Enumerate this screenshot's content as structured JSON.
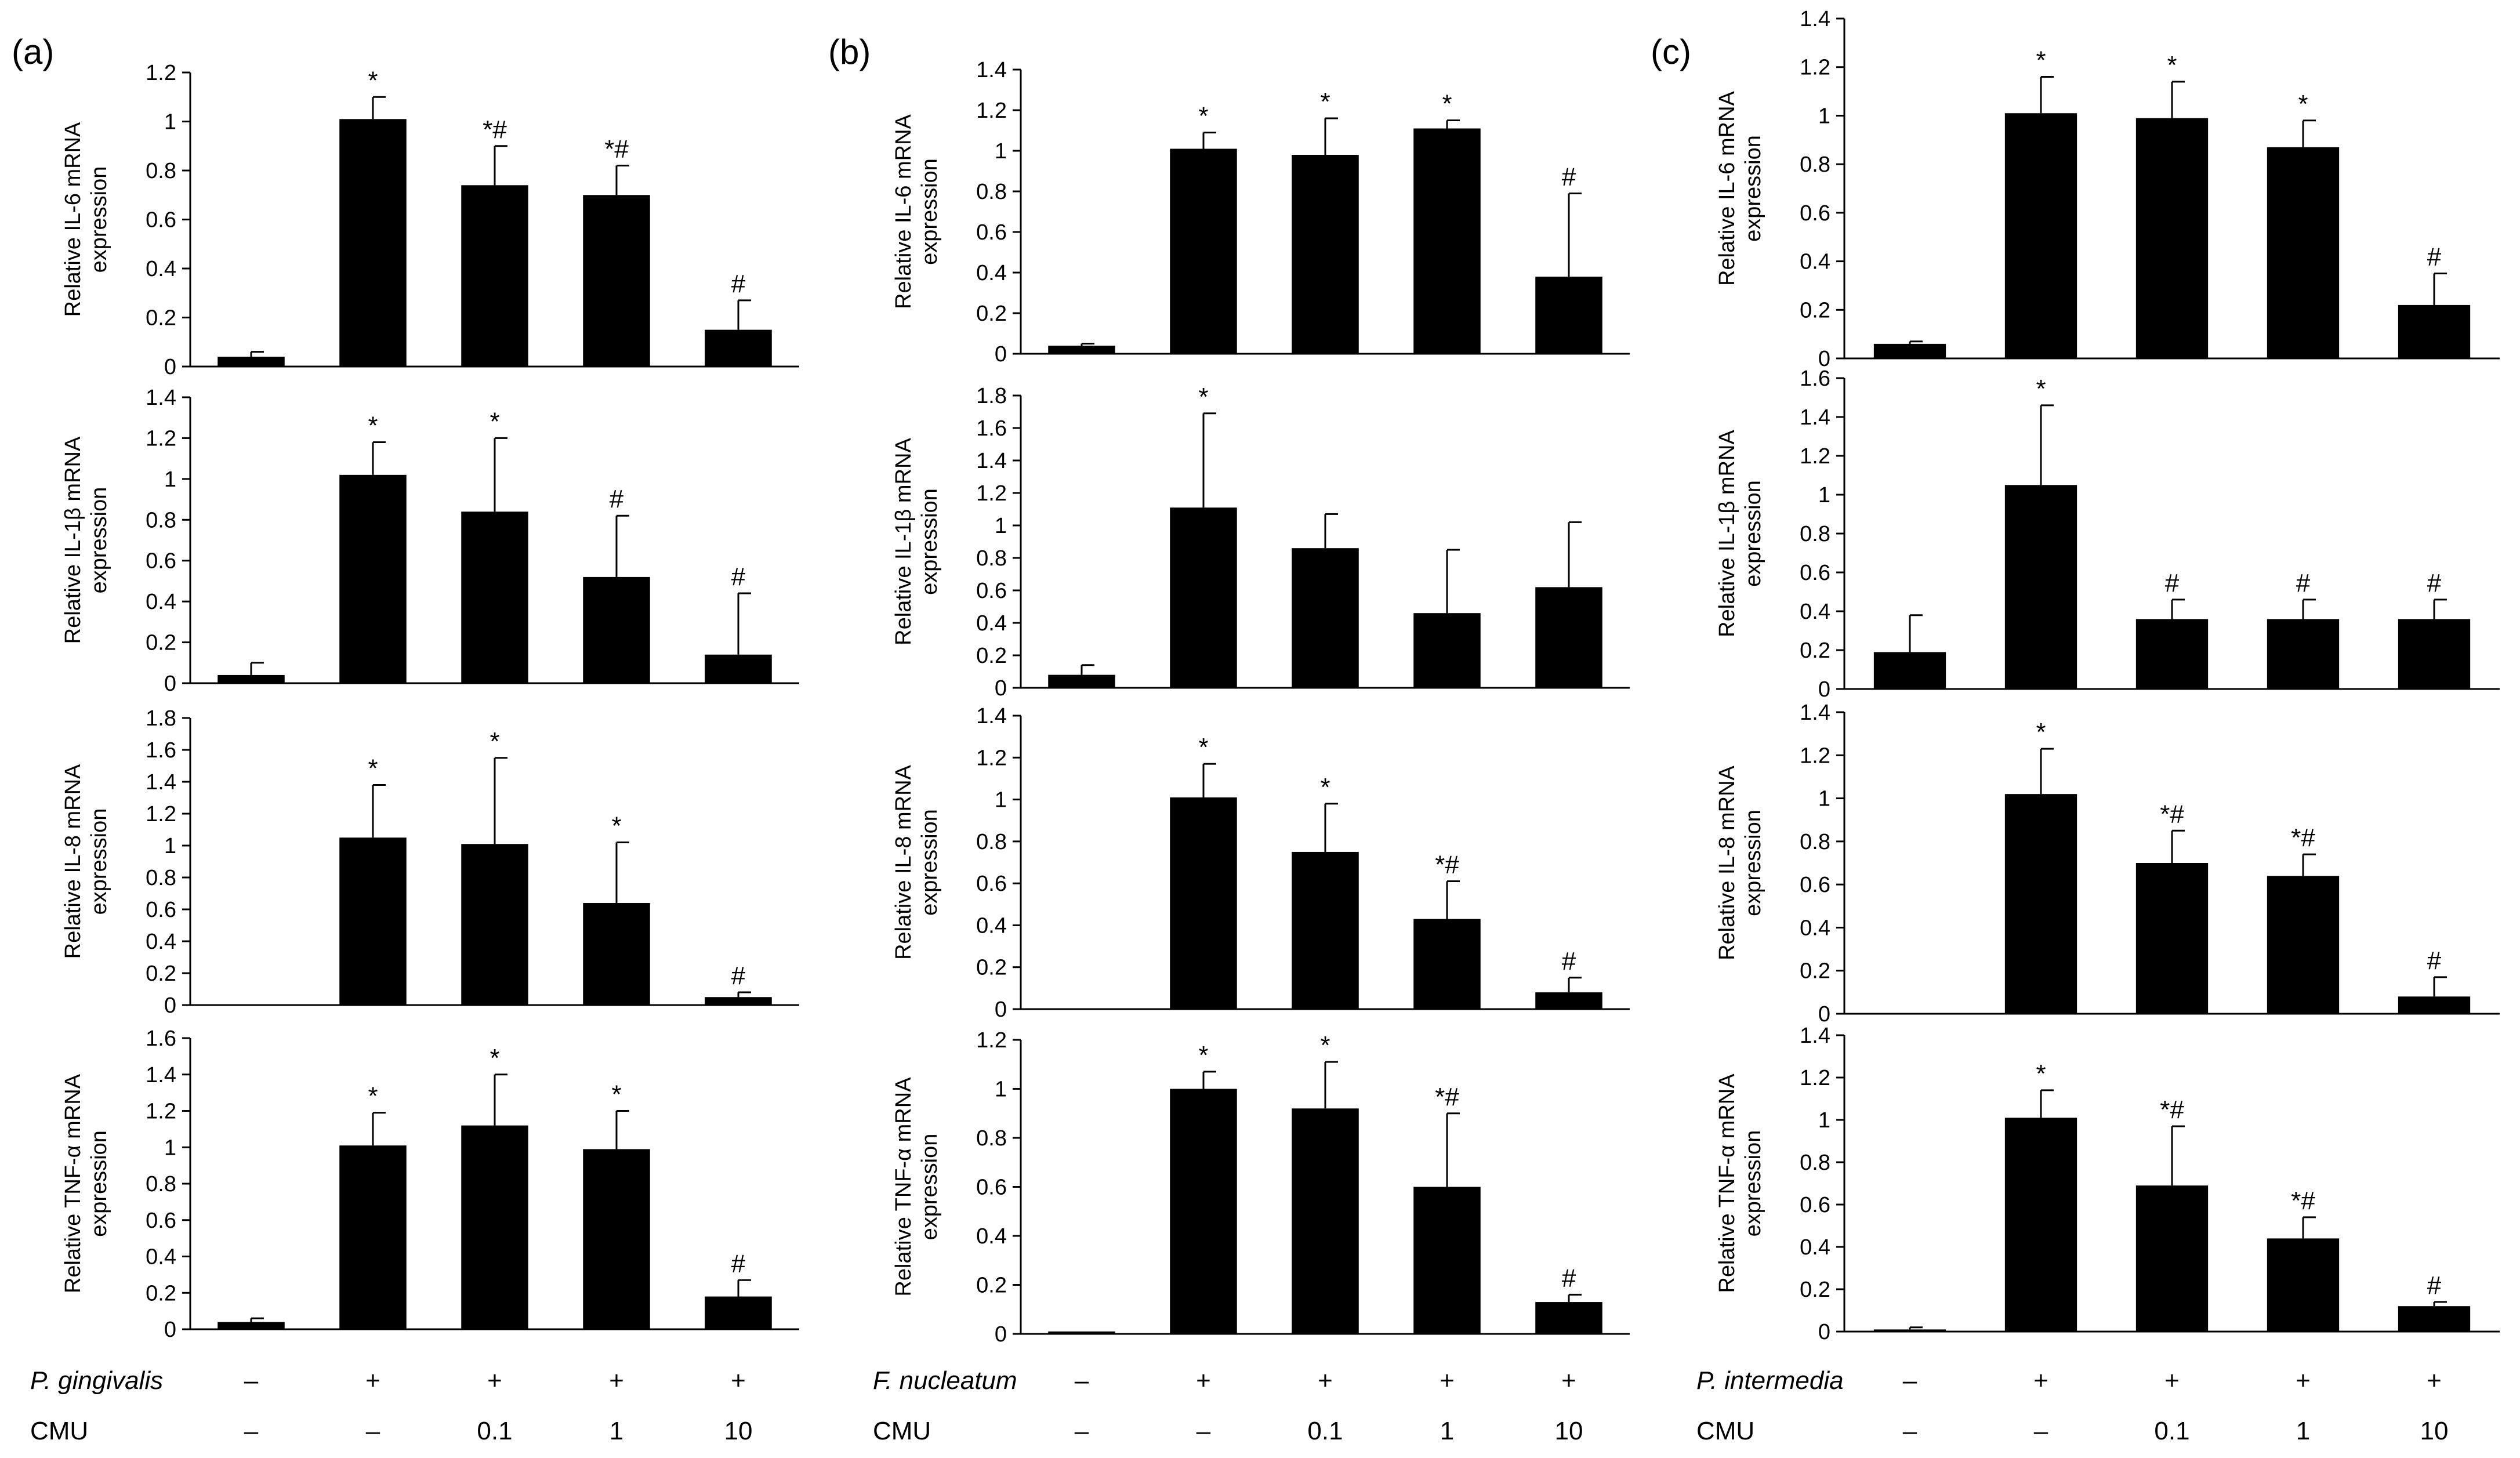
{
  "figure": {
    "panel_labels": [
      "(a)",
      "(b)",
      "(c)"
    ],
    "bacteria": [
      "P. gingivalis",
      "F. nucleatum",
      "P. intermedia"
    ],
    "cmu_label": "CMU",
    "plus": "+",
    "minus": "–",
    "bacteria_row": [
      "–",
      "+",
      "+",
      "+",
      "+"
    ],
    "cmu_row": [
      "–",
      "–",
      "0.1",
      "1",
      "10"
    ],
    "ylabel_line2": "expression"
  },
  "chart_data": [
    {
      "id": "a-il6",
      "type": "bar",
      "panel": "(a)",
      "ylabel": "Relative IL-6 mRNA",
      "ylim": [
        0,
        1.2
      ],
      "yticks": [
        0,
        0.2,
        0.4,
        0.6,
        0.8,
        1,
        1.2
      ],
      "values": [
        0.04,
        1.01,
        0.74,
        0.7,
        0.15
      ],
      "errors": [
        0.02,
        0.09,
        0.16,
        0.12,
        0.12
      ],
      "marks": [
        "",
        "*",
        "*#",
        "*#",
        "#"
      ]
    },
    {
      "id": "a-il1b",
      "type": "bar",
      "panel": "(a)",
      "ylabel": "Relative IL-1β mRNA",
      "ylim": [
        0,
        1.4
      ],
      "yticks": [
        0,
        0.2,
        0.4,
        0.6,
        0.8,
        1,
        1.2,
        1.4
      ],
      "values": [
        0.04,
        1.02,
        0.84,
        0.52,
        0.14
      ],
      "errors": [
        0.06,
        0.16,
        0.36,
        0.3,
        0.3
      ],
      "marks": [
        "",
        "*",
        "*",
        "#",
        "#"
      ]
    },
    {
      "id": "a-il8",
      "type": "bar",
      "panel": "(a)",
      "ylabel": "Relative IL-8 mRNA",
      "ylim": [
        0,
        1.8
      ],
      "yticks": [
        0,
        0.2,
        0.4,
        0.6,
        0.8,
        1,
        1.2,
        1.4,
        1.6,
        1.8
      ],
      "values": [
        0,
        1.05,
        1.01,
        0.64,
        0.05
      ],
      "errors": [
        0,
        0.33,
        0.54,
        0.38,
        0.03
      ],
      "marks": [
        "",
        "*",
        "*",
        "*",
        "#"
      ]
    },
    {
      "id": "a-tnf",
      "type": "bar",
      "panel": "(a)",
      "ylabel": "Relative TNF-α mRNA",
      "ylim": [
        0,
        1.6
      ],
      "yticks": [
        0,
        0.2,
        0.4,
        0.6,
        0.8,
        1,
        1.2,
        1.4,
        1.6
      ],
      "values": [
        0.04,
        1.01,
        1.12,
        0.99,
        0.18
      ],
      "errors": [
        0.02,
        0.18,
        0.28,
        0.21,
        0.09
      ],
      "marks": [
        "",
        "*",
        "*",
        "*",
        "#"
      ]
    },
    {
      "id": "b-il6",
      "type": "bar",
      "panel": "(b)",
      "ylabel": "Relative IL-6 mRNA",
      "ylim": [
        0,
        1.4
      ],
      "yticks": [
        0,
        0.2,
        0.4,
        0.6,
        0.8,
        1,
        1.2,
        1.4
      ],
      "values": [
        0.04,
        1.01,
        0.98,
        1.11,
        0.38
      ],
      "errors": [
        0.01,
        0.08,
        0.18,
        0.04,
        0.41
      ],
      "marks": [
        "",
        "*",
        "*",
        "*",
        "#"
      ]
    },
    {
      "id": "b-il1b",
      "type": "bar",
      "panel": "(b)",
      "ylabel": "Relative IL-1β mRNA",
      "ylim": [
        0,
        1.8
      ],
      "yticks": [
        0,
        0.2,
        0.4,
        0.6,
        0.8,
        1,
        1.2,
        1.4,
        1.6,
        1.8
      ],
      "values": [
        0.08,
        1.11,
        0.86,
        0.46,
        0.62
      ],
      "errors": [
        0.06,
        0.58,
        0.21,
        0.39,
        0.4
      ],
      "marks": [
        "",
        "*",
        "",
        "",
        ""
      ]
    },
    {
      "id": "b-il8",
      "type": "bar",
      "panel": "(b)",
      "ylabel": "Relative IL-8 mRNA",
      "ylim": [
        0,
        1.4
      ],
      "yticks": [
        0,
        0.2,
        0.4,
        0.6,
        0.8,
        1,
        1.2,
        1.4
      ],
      "values": [
        0,
        1.01,
        0.75,
        0.43,
        0.08
      ],
      "errors": [
        0,
        0.16,
        0.23,
        0.18,
        0.07
      ],
      "marks": [
        "",
        "*",
        "*",
        "*#",
        "#"
      ]
    },
    {
      "id": "b-tnf",
      "type": "bar",
      "panel": "(b)",
      "ylabel": "Relative TNF-α mRNA",
      "ylim": [
        0,
        1.2
      ],
      "yticks": [
        0,
        0.2,
        0.4,
        0.6,
        0.8,
        1,
        1.2
      ],
      "values": [
        0.01,
        1.0,
        0.92,
        0.6,
        0.13
      ],
      "errors": [
        0,
        0.07,
        0.19,
        0.3,
        0.03
      ],
      "marks": [
        "",
        "*",
        "*",
        "*#",
        "#"
      ]
    },
    {
      "id": "c-il6",
      "type": "bar",
      "panel": "(c)",
      "ylabel": "Relative IL-6 mRNA",
      "ylim": [
        0,
        1.4
      ],
      "yticks": [
        0,
        0.2,
        0.4,
        0.6,
        0.8,
        1,
        1.2,
        1.4
      ],
      "values": [
        0.06,
        1.01,
        0.99,
        0.87,
        0.22
      ],
      "errors": [
        0.01,
        0.15,
        0.15,
        0.11,
        0.13
      ],
      "marks": [
        "",
        "*",
        "*",
        "*",
        "#"
      ]
    },
    {
      "id": "c-il1b",
      "type": "bar",
      "panel": "(c)",
      "ylabel": "Relative IL-1β mRNA",
      "ylim": [
        0,
        1.6
      ],
      "yticks": [
        0,
        0.2,
        0.4,
        0.6,
        0.8,
        1,
        1.2,
        1.4,
        1.6
      ],
      "values": [
        0.19,
        1.05,
        0.36,
        0.36,
        0.36
      ],
      "errors": [
        0.19,
        0.41,
        0.1,
        0.1,
        0.1
      ],
      "marks": [
        "",
        "*",
        "#",
        "#",
        "#"
      ]
    },
    {
      "id": "c-il8",
      "type": "bar",
      "panel": "(c)",
      "ylabel": "Relative IL-8 mRNA",
      "ylim": [
        0,
        1.4
      ],
      "yticks": [
        0,
        0.2,
        0.4,
        0.6,
        0.8,
        1,
        1.2,
        1.4
      ],
      "values": [
        0,
        1.02,
        0.7,
        0.64,
        0.08
      ],
      "errors": [
        0,
        0.21,
        0.15,
        0.1,
        0.09
      ],
      "marks": [
        "",
        "*",
        "*#",
        "*#",
        "#"
      ]
    },
    {
      "id": "c-tnf",
      "type": "bar",
      "panel": "(c)",
      "ylabel": "Relative TNF-α mRNA",
      "ylim": [
        0,
        1.4
      ],
      "yticks": [
        0,
        0.2,
        0.4,
        0.6,
        0.8,
        1,
        1.2,
        1.4
      ],
      "values": [
        0.01,
        1.01,
        0.69,
        0.44,
        0.12
      ],
      "errors": [
        0.01,
        0.13,
        0.28,
        0.1,
        0.02
      ],
      "marks": [
        "",
        "*",
        "*#",
        "*#",
        "#"
      ]
    }
  ]
}
